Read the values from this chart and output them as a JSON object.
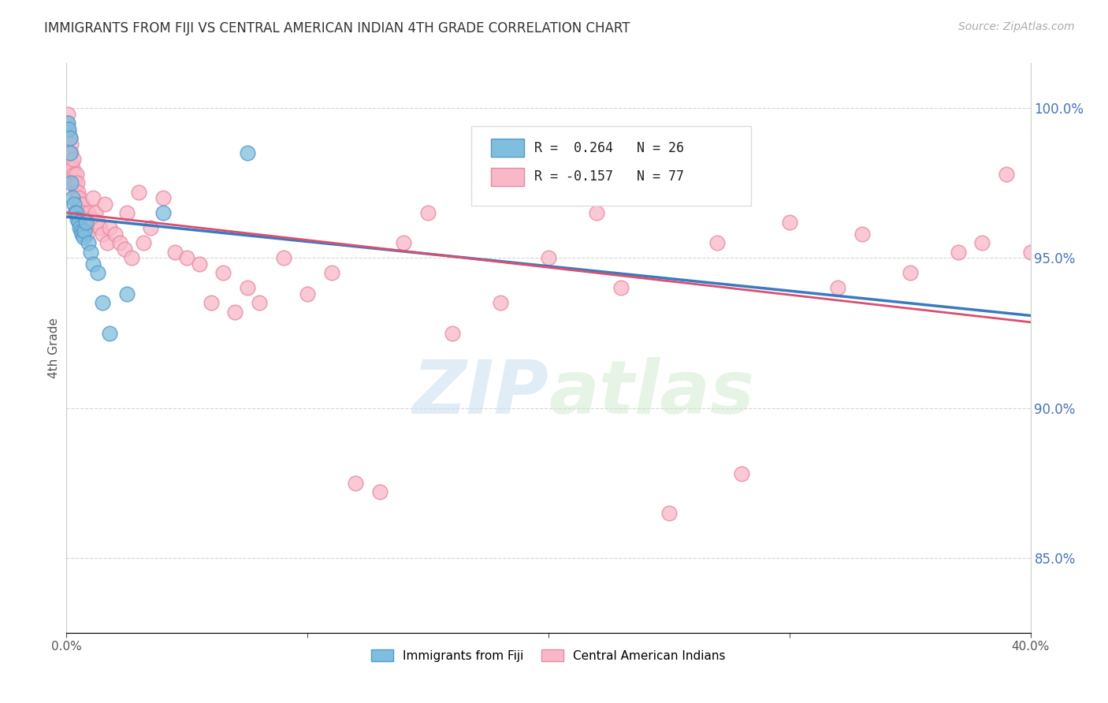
{
  "title": "IMMIGRANTS FROM FIJI VS CENTRAL AMERICAN INDIAN 4TH GRADE CORRELATION CHART",
  "source": "Source: ZipAtlas.com",
  "ylabel": "4th Grade",
  "ylabel_ticks": [
    85.0,
    90.0,
    95.0,
    100.0
  ],
  "ylabel_labels": [
    "85.0%",
    "90.0%",
    "95.0%",
    "100.0%"
  ],
  "xlim": [
    0.0,
    40.0
  ],
  "ylim": [
    82.5,
    101.5
  ],
  "r_fiji": 0.264,
  "n_fiji": 26,
  "r_cai": -0.157,
  "n_cai": 77,
  "fiji_color": "#7fbfdd",
  "fiji_edge": "#5599cc",
  "cai_color": "#f9b8c8",
  "cai_edge": "#e88aa0",
  "fiji_trend_color": "#3a7abf",
  "cai_trend_color": "#d95070",
  "legend_label_fiji": "Immigrants from Fiji",
  "legend_label_cai": "Central American Indians",
  "watermark_zip": "ZIP",
  "watermark_atlas": "atlas",
  "dot_size": 180,
  "fiji_x": [
    0.05,
    0.1,
    0.15,
    0.15,
    0.2,
    0.25,
    0.3,
    0.35,
    0.4,
    0.45,
    0.5,
    0.55,
    0.6,
    0.65,
    0.7,
    0.75,
    0.8,
    0.9,
    1.0,
    1.1,
    1.3,
    1.5,
    1.8,
    2.5,
    4.0,
    7.5
  ],
  "fiji_y": [
    99.5,
    99.3,
    99.0,
    98.5,
    97.5,
    97.0,
    96.8,
    96.5,
    96.5,
    96.3,
    96.2,
    96.0,
    95.9,
    95.8,
    95.7,
    95.9,
    96.2,
    95.5,
    95.2,
    94.8,
    94.5,
    93.5,
    92.5,
    93.8,
    96.5,
    98.5
  ],
  "cai_x": [
    0.02,
    0.05,
    0.08,
    0.1,
    0.12,
    0.15,
    0.18,
    0.2,
    0.22,
    0.25,
    0.28,
    0.3,
    0.32,
    0.35,
    0.38,
    0.4,
    0.42,
    0.45,
    0.48,
    0.5,
    0.55,
    0.6,
    0.65,
    0.7,
    0.75,
    0.8,
    0.85,
    0.9,
    1.0,
    1.1,
    1.2,
    1.3,
    1.4,
    1.5,
    1.6,
    1.7,
    1.8,
    2.0,
    2.2,
    2.4,
    2.5,
    2.7,
    3.0,
    3.2,
    3.5,
    4.0,
    4.5,
    5.0,
    5.5,
    6.0,
    6.5,
    7.0,
    7.5,
    8.0,
    9.0,
    10.0,
    11.0,
    12.0,
    13.0,
    14.0,
    15.0,
    16.0,
    18.0,
    20.0,
    22.0,
    23.0,
    25.0,
    27.0,
    28.0,
    30.0,
    32.0,
    33.0,
    35.0,
    37.0,
    38.0,
    39.0,
    40.0
  ],
  "cai_y": [
    99.5,
    99.8,
    98.5,
    99.2,
    98.0,
    99.0,
    98.8,
    98.5,
    98.2,
    98.0,
    98.3,
    97.5,
    97.8,
    97.5,
    97.2,
    97.0,
    97.8,
    97.5,
    97.2,
    97.0,
    96.8,
    96.5,
    96.8,
    96.5,
    96.3,
    96.0,
    95.8,
    96.5,
    96.3,
    97.0,
    96.5,
    96.2,
    96.0,
    95.8,
    96.8,
    95.5,
    96.0,
    95.8,
    95.5,
    95.3,
    96.5,
    95.0,
    97.2,
    95.5,
    96.0,
    97.0,
    95.2,
    95.0,
    94.8,
    93.5,
    94.5,
    93.2,
    94.0,
    93.5,
    95.0,
    93.8,
    94.5,
    87.5,
    87.2,
    95.5,
    96.5,
    92.5,
    93.5,
    95.0,
    96.5,
    94.0,
    86.5,
    95.5,
    87.8,
    96.2,
    94.0,
    95.8,
    94.5,
    95.2,
    95.5,
    97.8,
    95.2
  ]
}
